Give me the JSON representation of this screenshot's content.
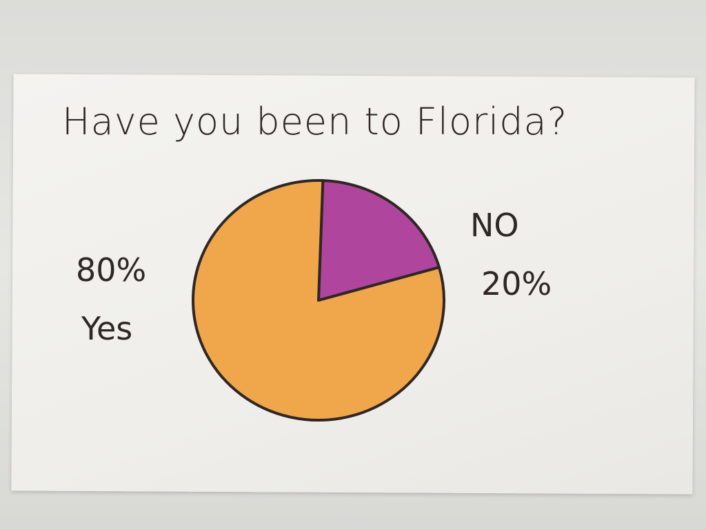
{
  "chart_data": {
    "type": "pie",
    "title": "Have you been to Florida?",
    "slices": [
      {
        "label": "No",
        "value": 20,
        "value_label": "20%",
        "label_text": "NO",
        "color": "#b0459e"
      },
      {
        "label": "Yes",
        "value": 80,
        "value_label": "80%",
        "label_text": "Yes",
        "color": "#f0a64a"
      }
    ],
    "outline_color": "#2e2724",
    "legend": "none"
  }
}
